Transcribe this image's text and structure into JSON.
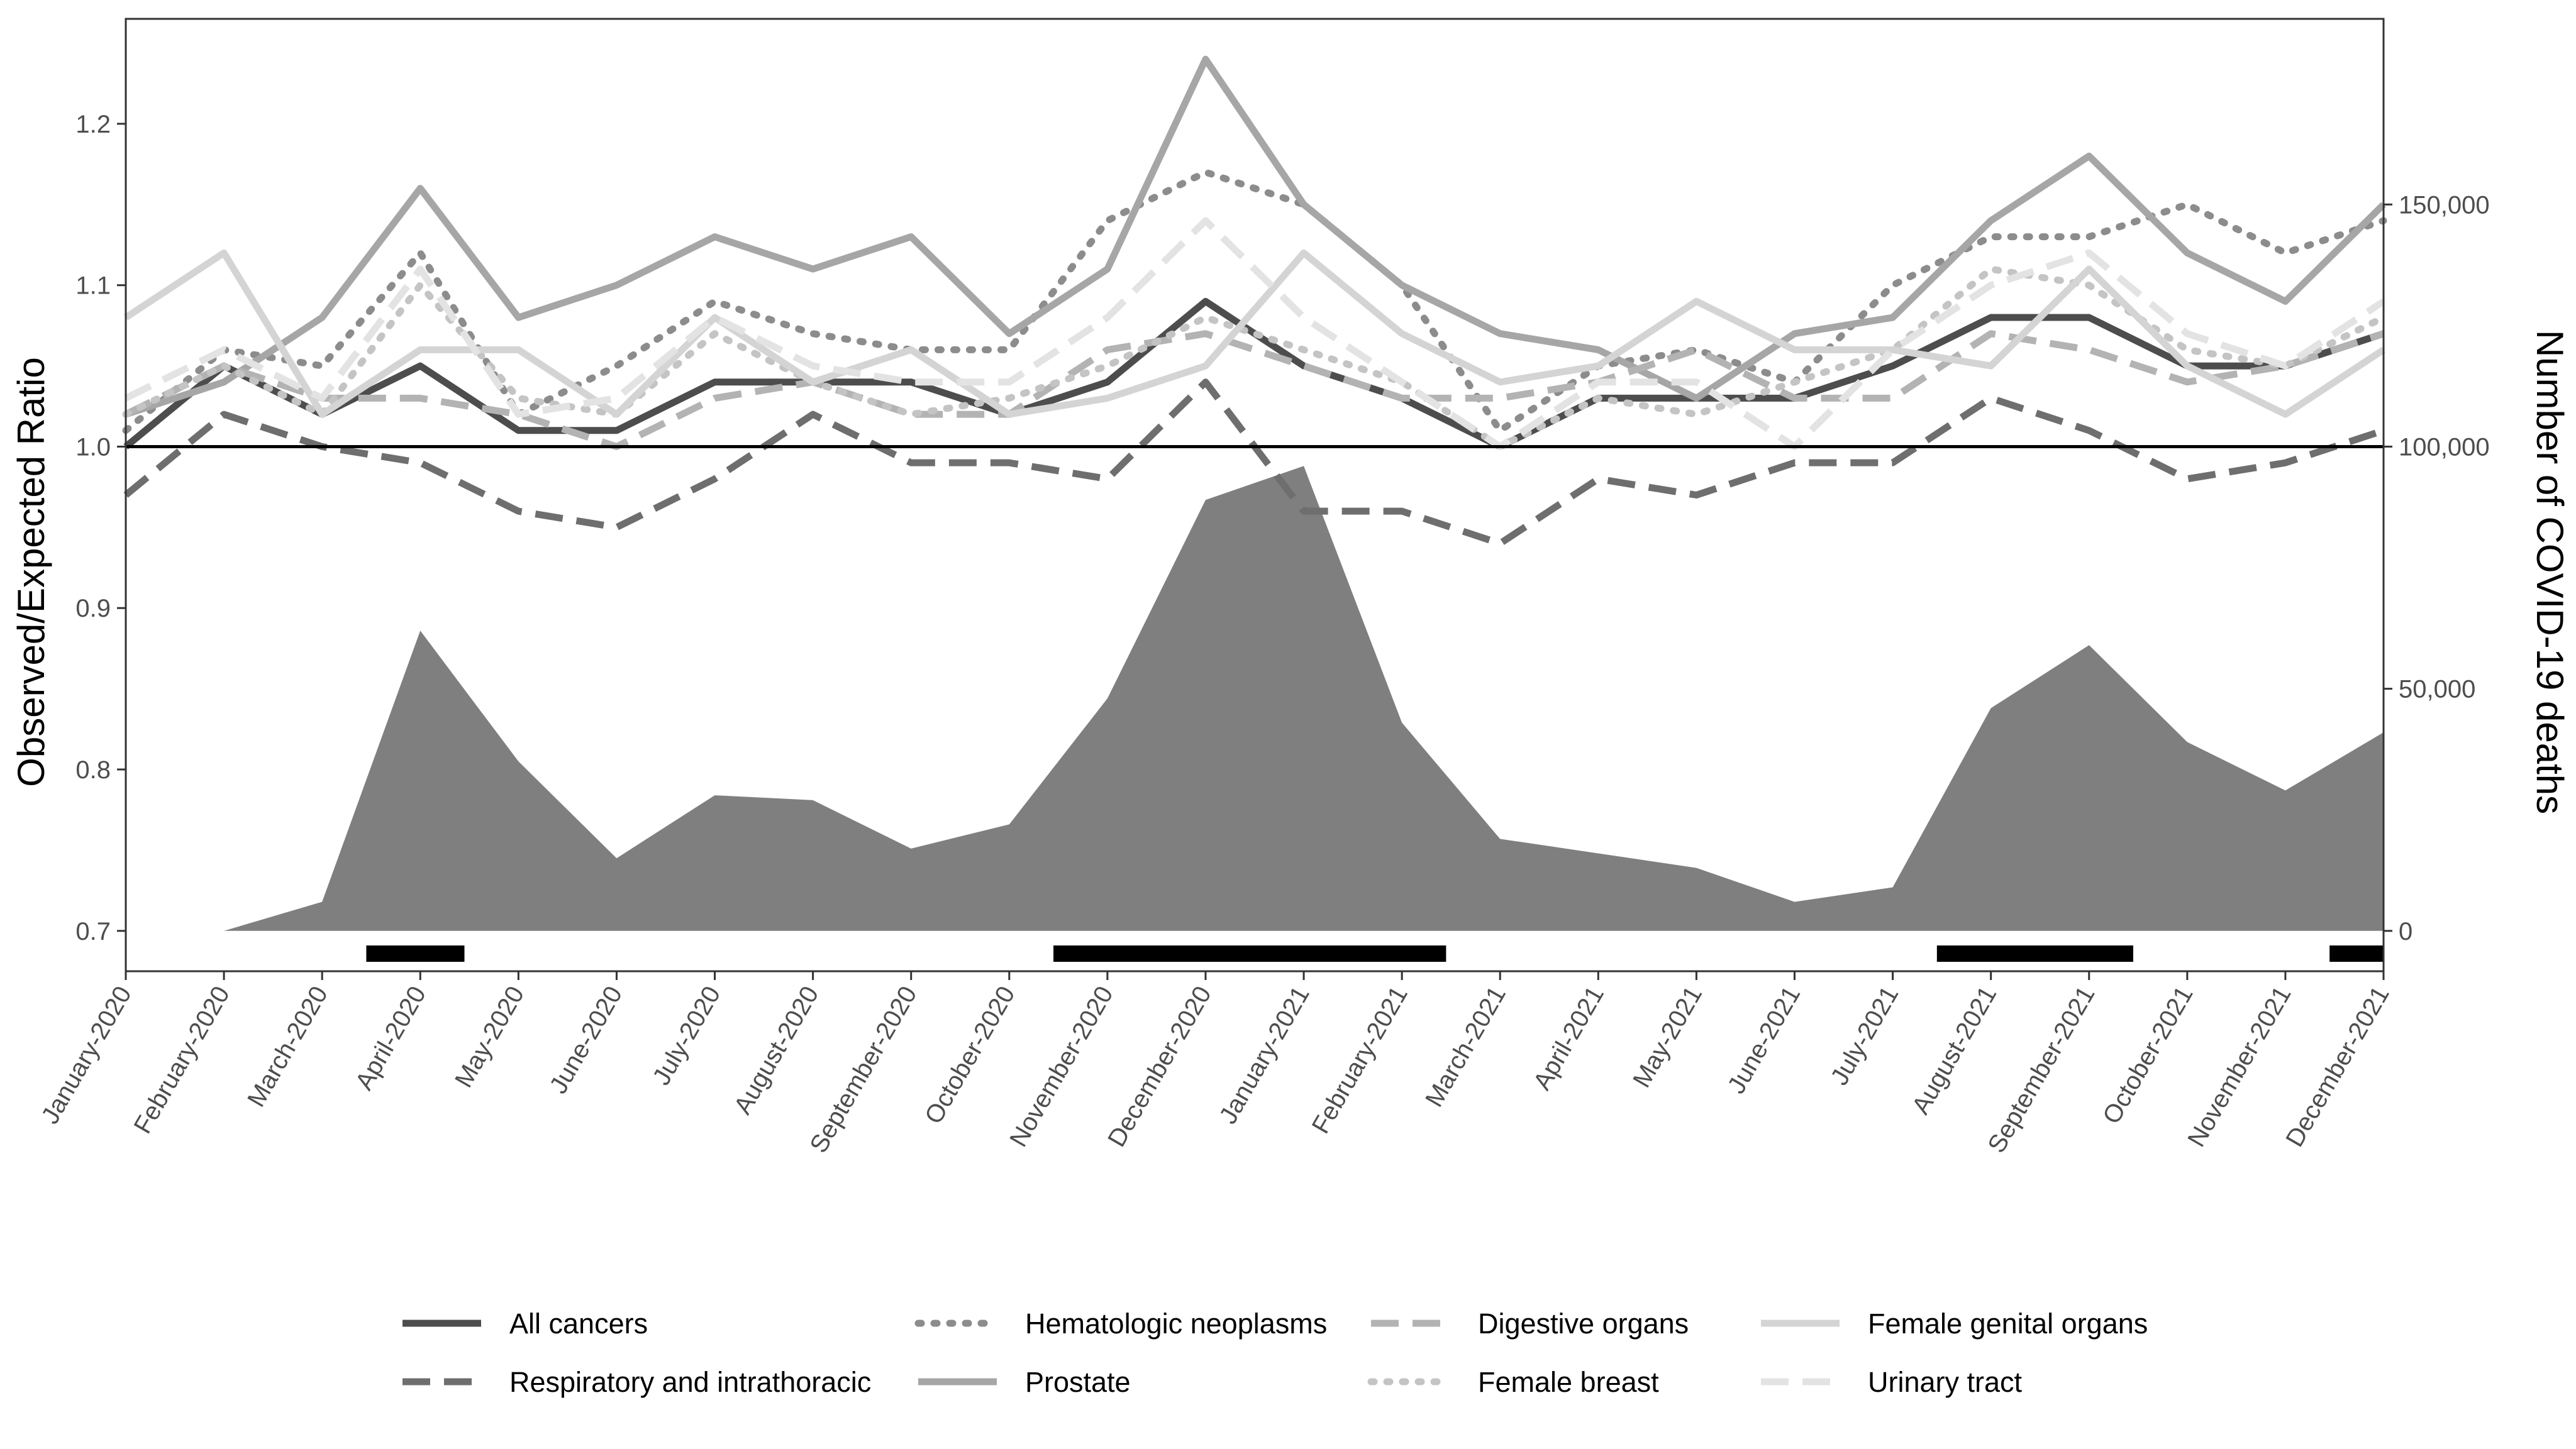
{
  "chart_data": {
    "type": "line",
    "categories": [
      "January-2020",
      "February-2020",
      "March-2020",
      "April-2020",
      "May-2020",
      "June-2020",
      "July-2020",
      "August-2020",
      "September-2020",
      "October-2020",
      "November-2020",
      "December-2020",
      "January-2021",
      "February-2021",
      "March-2021",
      "April-2021",
      "May-2021",
      "June-2021",
      "July-2021",
      "August-2021",
      "September-2021",
      "October-2021",
      "November-2021",
      "December-2021"
    ],
    "ylabel": "Observed/Expected Ratio",
    "y2label": "Number of COVID-19 deaths",
    "ylim": [
      0.675,
      1.265
    ],
    "yticks": [
      0.7,
      0.8,
      0.9,
      1.0,
      1.1,
      1.2
    ],
    "ytick_labels": [
      "0.7",
      "0.8",
      "0.9",
      "1.0",
      "1.1",
      "1.2"
    ],
    "y2ticks": [
      0,
      50000,
      100000,
      150000
    ],
    "y2tick_labels": [
      "0",
      "50,000",
      "100,000",
      "150,000"
    ],
    "reference_line": 1.0,
    "grid": false,
    "legend_position": "bottom",
    "series": [
      {
        "name": "All cancers",
        "color": "#4d4d4d",
        "dash": "solid",
        "values": [
          1.0,
          1.05,
          1.02,
          1.05,
          1.01,
          1.01,
          1.04,
          1.04,
          1.04,
          1.02,
          1.04,
          1.09,
          1.05,
          1.03,
          1.0,
          1.03,
          1.03,
          1.03,
          1.05,
          1.08,
          1.08,
          1.05,
          1.05,
          1.07
        ]
      },
      {
        "name": "Respiratory and intrathoracic",
        "color": "#6e6e6e",
        "dash": "longdash",
        "values": [
          0.97,
          1.02,
          1.0,
          0.99,
          0.96,
          0.95,
          0.98,
          1.02,
          0.99,
          0.99,
          0.98,
          1.04,
          0.96,
          0.96,
          0.94,
          0.98,
          0.97,
          0.99,
          0.99,
          1.03,
          1.01,
          0.98,
          0.99,
          1.01
        ]
      },
      {
        "name": "Hematologic neoplasms",
        "color": "#8c8c8c",
        "dash": "dotted",
        "values": [
          1.01,
          1.06,
          1.05,
          1.12,
          1.02,
          1.05,
          1.09,
          1.07,
          1.06,
          1.06,
          1.14,
          1.17,
          1.15,
          1.1,
          1.01,
          1.05,
          1.06,
          1.04,
          1.1,
          1.13,
          1.13,
          1.15,
          1.12,
          1.14
        ]
      },
      {
        "name": "Prostate",
        "color": "#a6a6a6",
        "dash": "solid",
        "values": [
          1.02,
          1.04,
          1.08,
          1.16,
          1.08,
          1.1,
          1.13,
          1.11,
          1.13,
          1.07,
          1.11,
          1.24,
          1.15,
          1.1,
          1.07,
          1.06,
          1.03,
          1.07,
          1.08,
          1.14,
          1.18,
          1.12,
          1.09,
          1.15
        ]
      },
      {
        "name": "Digestive organs",
        "color": "#b3b3b3",
        "dash": "longdash",
        "values": [
          1.02,
          1.05,
          1.03,
          1.03,
          1.02,
          1.0,
          1.03,
          1.04,
          1.02,
          1.02,
          1.06,
          1.07,
          1.05,
          1.03,
          1.03,
          1.04,
          1.06,
          1.03,
          1.03,
          1.07,
          1.06,
          1.04,
          1.05,
          1.07
        ]
      },
      {
        "name": "Female breast",
        "color": "#c4c4c4",
        "dash": "dotted",
        "values": [
          1.02,
          1.05,
          1.02,
          1.1,
          1.03,
          1.02,
          1.07,
          1.04,
          1.02,
          1.03,
          1.05,
          1.08,
          1.06,
          1.04,
          1.0,
          1.03,
          1.02,
          1.04,
          1.06,
          1.11,
          1.1,
          1.06,
          1.05,
          1.08
        ]
      },
      {
        "name": "Female genital organs",
        "color": "#d4d4d4",
        "dash": "solid",
        "values": [
          1.08,
          1.12,
          1.02,
          1.06,
          1.06,
          1.02,
          1.08,
          1.04,
          1.06,
          1.02,
          1.03,
          1.05,
          1.12,
          1.07,
          1.04,
          1.05,
          1.09,
          1.06,
          1.06,
          1.05,
          1.11,
          1.05,
          1.02,
          1.06
        ]
      },
      {
        "name": "Urinary tract",
        "color": "#e3e3e3",
        "dash": "longdash",
        "values": [
          1.03,
          1.06,
          1.03,
          1.11,
          1.02,
          1.03,
          1.08,
          1.05,
          1.04,
          1.04,
          1.08,
          1.14,
          1.08,
          1.04,
          1.0,
          1.04,
          1.04,
          1.0,
          1.06,
          1.1,
          1.12,
          1.07,
          1.05,
          1.09
        ]
      }
    ],
    "covid_deaths": {
      "name": "Number of COVID-19 deaths",
      "color": "#7f7f7f",
      "values": [
        0,
        0,
        6000,
        62000,
        35000,
        15000,
        28000,
        27000,
        17000,
        22000,
        48000,
        89000,
        96000,
        43000,
        19000,
        16000,
        13000,
        6000,
        9000,
        46000,
        59000,
        39000,
        29000,
        41000
      ]
    },
    "period_bars": [
      {
        "start": 2.45,
        "end": 3.45
      },
      {
        "start": 9.45,
        "end": 13.45
      },
      {
        "start": 18.45,
        "end": 20.45
      },
      {
        "start": 22.45,
        "end": 23.0
      }
    ]
  }
}
